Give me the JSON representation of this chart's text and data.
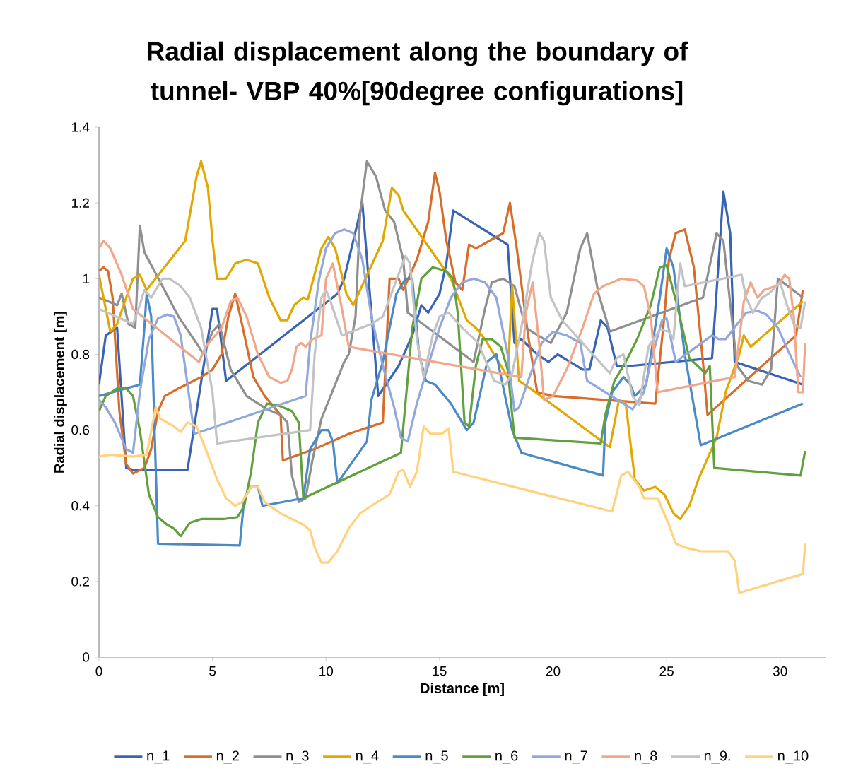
{
  "chart_data": {
    "type": "line",
    "title": "Radial displacement along the boundary of tunnel- VBP 40%[90degree configurations]",
    "xlabel": "Distance [m]",
    "ylabel": "Radial displacement [m]",
    "xlim": [
      0,
      32
    ],
    "xticks": [
      0,
      5,
      10,
      15,
      20,
      25,
      30
    ],
    "ylim": [
      0,
      1.4
    ],
    "yticks": [
      0,
      0.2,
      0.4,
      0.6,
      0.8,
      1,
      1.2,
      1.4
    ],
    "grid": false,
    "legend": "bottom",
    "marker": "none",
    "line_style": "solid",
    "series": [
      {
        "name": "n_1",
        "color": "#3764b4",
        "x": [
          0,
          0.3,
          0.8,
          1.2,
          1.5,
          3.9,
          5.0,
          5.2,
          5.6,
          10.5,
          10.8,
          11.6,
          12.3,
          13.2,
          13.8,
          14.2,
          14.5,
          15.0,
          15.3,
          15.6,
          18.0,
          18.3,
          18.6,
          19.3,
          19.8,
          20.2,
          21.3,
          21.6,
          22.1,
          22.4,
          22.8,
          23.5,
          27.0,
          27.5,
          27.8,
          28.0,
          31.0
        ],
        "values": [
          0.72,
          0.85,
          0.87,
          0.5,
          0.495,
          0.495,
          0.92,
          0.92,
          0.73,
          0.96,
          1.0,
          1.2,
          0.69,
          0.77,
          0.85,
          0.93,
          0.91,
          0.96,
          1.04,
          1.18,
          1.09,
          0.83,
          0.84,
          0.8,
          0.78,
          0.8,
          0.76,
          0.76,
          0.89,
          0.87,
          0.77,
          0.77,
          0.79,
          1.23,
          1.12,
          0.78,
          0.72
        ]
      },
      {
        "name": "n_2",
        "color": "#d86c2a",
        "x": [
          0,
          0.2,
          0.4,
          0.6,
          0.9,
          1.2,
          1.5,
          2.0,
          2.3,
          2.6,
          2.9,
          3.5,
          4.5,
          5.0,
          5.4,
          5.7,
          6.0,
          6.3,
          6.8,
          7.3,
          8.0,
          8.1,
          9.5,
          11.0,
          12.5,
          12.8,
          13.2,
          13.4,
          14.0,
          14.5,
          14.8,
          15.0,
          15.3,
          15.7,
          16.0,
          16.3,
          16.6,
          17.8,
          18.1,
          18.4,
          18.9,
          19.3,
          20.0,
          24.5,
          24.9,
          25.1,
          25.4,
          25.8,
          26.2,
          26.6,
          26.8,
          30.7,
          31.0
        ],
        "values": [
          1.02,
          1.03,
          1.02,
          0.95,
          0.65,
          0.51,
          0.485,
          0.5,
          0.55,
          0.65,
          0.69,
          0.71,
          0.74,
          0.76,
          0.8,
          0.9,
          0.96,
          0.88,
          0.74,
          0.69,
          0.64,
          0.52,
          0.55,
          0.59,
          0.62,
          1.0,
          1.0,
          0.97,
          1.05,
          1.15,
          1.28,
          1.23,
          1.1,
          0.99,
          0.97,
          1.09,
          1.08,
          1.12,
          1.2,
          1.08,
          0.85,
          0.7,
          0.69,
          0.67,
          0.9,
          1.05,
          1.12,
          1.13,
          1.03,
          0.78,
          0.64,
          0.85,
          0.97
        ]
      },
      {
        "name": "n_3",
        "color": "#8f8f8f",
        "x": [
          0,
          0.8,
          1.0,
          1.3,
          1.6,
          1.8,
          2.0,
          3.5,
          4.4,
          4.6,
          5.0,
          5.3,
          5.8,
          6.5,
          7.4,
          8.0,
          8.3,
          8.5,
          8.8,
          9.1,
          9.4,
          9.8,
          10.4,
          10.8,
          11.0,
          11.3,
          11.5,
          11.8,
          12.2,
          12.6,
          13.0,
          13.4,
          13.6,
          16.5,
          17.0,
          17.3,
          17.8,
          18.3,
          18.8,
          19.2,
          19.9,
          20.6,
          21.2,
          21.5,
          22.0,
          22.5,
          26.6,
          27.2,
          27.5,
          28.1,
          28.6,
          29.2,
          29.6,
          29.9,
          31.0
        ],
        "values": [
          0.95,
          0.93,
          0.96,
          0.88,
          0.87,
          1.14,
          1.07,
          0.9,
          0.82,
          0.8,
          0.86,
          0.88,
          0.76,
          0.69,
          0.655,
          0.64,
          0.62,
          0.48,
          0.41,
          0.42,
          0.52,
          0.63,
          0.72,
          0.78,
          0.8,
          0.9,
          1.17,
          1.31,
          1.27,
          1.18,
          1.15,
          1.05,
          0.91,
          0.78,
          0.92,
          0.99,
          1.0,
          0.98,
          0.87,
          0.855,
          0.83,
          0.91,
          1.08,
          1.12,
          0.96,
          0.86,
          0.95,
          1.12,
          1.1,
          0.77,
          0.73,
          0.72,
          0.76,
          1.0,
          0.95
        ]
      },
      {
        "name": "n_4",
        "color": "#e2a800",
        "x": [
          0,
          0.2,
          0.5,
          0.8,
          1.2,
          1.5,
          1.8,
          2.1,
          3.8,
          4.3,
          4.5,
          4.8,
          5.0,
          5.2,
          5.6,
          6.0,
          6.5,
          7.0,
          7.5,
          8.0,
          8.3,
          8.6,
          9.0,
          9.2,
          9.8,
          10.1,
          10.4,
          10.9,
          11.2,
          12.5,
          12.9,
          13.2,
          13.4,
          15.5,
          16.2,
          16.6,
          17.0,
          17.5,
          18.0,
          18.2,
          18.5,
          19.0,
          22.5,
          22.9,
          23.2,
          23.6,
          24.0,
          24.5,
          24.9,
          25.3,
          25.6,
          26.0,
          26.4,
          27.2,
          27.6,
          28.2,
          28.4,
          28.7,
          31.0
        ],
        "values": [
          1.01,
          0.95,
          0.86,
          0.88,
          0.95,
          1.0,
          1.01,
          0.97,
          1.1,
          1.27,
          1.31,
          1.24,
          1.1,
          1.0,
          1.0,
          1.04,
          1.05,
          1.04,
          0.95,
          0.89,
          0.89,
          0.93,
          0.95,
          0.945,
          1.08,
          1.11,
          1.08,
          0.96,
          0.93,
          1.1,
          1.24,
          1.22,
          1.18,
          1.0,
          0.89,
          0.87,
          0.84,
          0.79,
          0.74,
          0.98,
          0.73,
          0.71,
          0.555,
          0.68,
          0.67,
          0.47,
          0.44,
          0.45,
          0.43,
          0.38,
          0.365,
          0.4,
          0.47,
          0.58,
          0.7,
          0.8,
          0.85,
          0.82,
          0.94
        ]
      },
      {
        "name": "n_5",
        "color": "#4a8ac6",
        "x": [
          0,
          1.8,
          2.0,
          2.1,
          2.3,
          2.5,
          2.6,
          6.2,
          6.4,
          6.7,
          7.0,
          7.2,
          9.0,
          9.3,
          9.8,
          10.1,
          10.3,
          10.5,
          11.8,
          12.0,
          12.5,
          13.1,
          13.5,
          13.8,
          14.1,
          14.4,
          14.8,
          15.5,
          16.0,
          16.2,
          16.5,
          16.8,
          17.1,
          17.5,
          18.2,
          18.6,
          22.2,
          22.3,
          22.6,
          23.1,
          23.4,
          23.6,
          24.1,
          24.7,
          25.0,
          25.3,
          25.8,
          26.5,
          31.0
        ],
        "values": [
          0.69,
          0.72,
          0.87,
          0.96,
          0.9,
          0.5,
          0.3,
          0.295,
          0.42,
          0.45,
          0.45,
          0.4,
          0.42,
          0.55,
          0.6,
          0.6,
          0.57,
          0.46,
          0.57,
          0.68,
          0.78,
          0.96,
          1.0,
          1.0,
          0.8,
          0.73,
          0.72,
          0.67,
          0.62,
          0.6,
          0.62,
          0.7,
          0.78,
          0.8,
          0.6,
          0.54,
          0.48,
          0.62,
          0.7,
          0.74,
          0.72,
          0.69,
          0.72,
          0.95,
          1.08,
          1.03,
          0.8,
          0.56,
          0.67
        ]
      },
      {
        "name": "n_6",
        "color": "#61a03c",
        "x": [
          0,
          0.3,
          0.8,
          1.2,
          1.5,
          1.8,
          2.2,
          2.6,
          3.0,
          3.3,
          3.6,
          4.0,
          4.5,
          5.5,
          6.1,
          6.4,
          6.7,
          7.0,
          7.4,
          7.9,
          8.5,
          8.8,
          9.0,
          13.3,
          13.8,
          14.2,
          14.7,
          15.3,
          15.6,
          15.8,
          16.1,
          16.3,
          16.6,
          16.9,
          17.3,
          17.7,
          18.0,
          18.3,
          22.1,
          22.3,
          22.7,
          23.2,
          23.7,
          24.3,
          24.7,
          25.0,
          25.5,
          26.0,
          26.7,
          26.9,
          27.1,
          30.9,
          31.1
        ],
        "values": [
          0.65,
          0.69,
          0.71,
          0.71,
          0.69,
          0.6,
          0.43,
          0.37,
          0.35,
          0.34,
          0.32,
          0.355,
          0.365,
          0.365,
          0.37,
          0.4,
          0.49,
          0.62,
          0.67,
          0.665,
          0.65,
          0.62,
          0.42,
          0.54,
          0.87,
          1.0,
          1.03,
          1.02,
          1.0,
          0.91,
          0.62,
          0.61,
          0.77,
          0.84,
          0.84,
          0.82,
          0.76,
          0.58,
          0.565,
          0.64,
          0.73,
          0.78,
          0.84,
          0.93,
          1.03,
          1.035,
          0.92,
          0.79,
          0.75,
          0.77,
          0.5,
          0.48,
          0.545
        ]
      },
      {
        "name": "n_7",
        "color": "#92a7dc",
        "x": [
          0,
          0.3,
          0.7,
          1.2,
          1.5,
          1.8,
          2.2,
          2.6,
          3.0,
          3.3,
          3.6,
          4.2,
          9.1,
          9.3,
          9.7,
          10.0,
          10.4,
          10.8,
          11.2,
          11.6,
          12.0,
          12.5,
          13.0,
          13.3,
          13.6,
          14.0,
          14.5,
          15.0,
          15.5,
          16.0,
          16.5,
          17.0,
          17.5,
          18.0,
          18.3,
          18.5,
          18.9,
          19.5,
          20.0,
          20.6,
          21.2,
          21.5,
          23.5,
          24.0,
          24.3,
          24.8,
          25.0,
          25.4,
          27.0,
          27.3,
          27.6,
          28.5,
          29.0,
          29.4,
          29.9,
          30.5,
          30.9
        ],
        "values": [
          0.68,
          0.66,
          0.62,
          0.55,
          0.54,
          0.7,
          0.84,
          0.895,
          0.905,
          0.9,
          0.85,
          0.59,
          0.69,
          0.83,
          1.0,
          1.08,
          1.12,
          1.13,
          1.12,
          1.05,
          0.9,
          0.77,
          0.66,
          0.58,
          0.57,
          0.67,
          0.77,
          0.87,
          0.95,
          0.99,
          1.0,
          0.99,
          0.95,
          0.8,
          0.65,
          0.66,
          0.73,
          0.83,
          0.86,
          0.85,
          0.83,
          0.73,
          0.655,
          0.7,
          0.78,
          0.89,
          0.895,
          0.78,
          0.85,
          0.84,
          0.84,
          0.91,
          0.915,
          0.905,
          0.87,
          0.79,
          0.74
        ]
      },
      {
        "name": "n_8",
        "color": "#f2a68a",
        "x": [
          0,
          0.2,
          0.5,
          1.0,
          1.5,
          4.4,
          4.7,
          5.4,
          5.8,
          6.1,
          6.5,
          7.0,
          7.5,
          8.0,
          8.3,
          8.5,
          8.7,
          8.9,
          9.1,
          9.4,
          9.8,
          10.0,
          10.3,
          10.7,
          11.0,
          18.6,
          18.8,
          19.1,
          19.4,
          19.6,
          20.0,
          20.6,
          21.3,
          21.8,
          22.2,
          22.6,
          23.0,
          23.7,
          24.0,
          24.3,
          24.6,
          28.0,
          28.4,
          28.7,
          29.0,
          29.3,
          29.8,
          30.0,
          30.2,
          30.4,
          30.6,
          30.8,
          31.0,
          31.1
        ],
        "values": [
          1.08,
          1.1,
          1.08,
          1.01,
          0.92,
          0.78,
          0.82,
          0.87,
          0.94,
          0.95,
          0.9,
          0.8,
          0.74,
          0.725,
          0.73,
          0.76,
          0.82,
          0.83,
          0.82,
          0.84,
          0.85,
          1.0,
          1.04,
          0.92,
          0.82,
          0.74,
          0.91,
          0.99,
          0.82,
          0.68,
          0.69,
          0.76,
          0.87,
          0.96,
          0.98,
          0.99,
          1.0,
          0.995,
          0.98,
          0.9,
          0.7,
          0.74,
          0.94,
          0.99,
          0.95,
          0.97,
          0.98,
          0.99,
          1.01,
          1.0,
          0.9,
          0.7,
          0.7,
          0.83
        ]
      },
      {
        "name": "n_9.",
        "color": "#c3c3c3",
        "x": [
          0,
          1.5,
          1.8,
          2.0,
          2.3,
          2.8,
          3.1,
          3.6,
          4.0,
          4.5,
          5.0,
          5.2,
          9.3,
          9.5,
          9.8,
          10.0,
          10.2,
          10.7,
          12.0,
          12.5,
          13.0,
          13.5,
          13.7,
          14.0,
          14.3,
          14.7,
          15.0,
          15.4,
          16.0,
          16.7,
          17.4,
          17.9,
          18.2,
          18.6,
          19.1,
          19.4,
          19.6,
          19.9,
          20.4,
          22.5,
          22.8,
          23.1,
          23.5,
          23.8,
          24.2,
          24.7,
          25.1,
          25.3,
          25.5,
          25.6,
          25.8,
          28.3,
          28.5,
          28.8,
          29.2,
          29.5,
          30.0,
          30.3,
          30.6,
          30.9,
          31.1
        ],
        "values": [
          0.92,
          0.88,
          0.93,
          0.97,
          0.95,
          1.0,
          1.0,
          0.98,
          0.95,
          0.87,
          0.7,
          0.565,
          0.6,
          0.8,
          0.95,
          0.97,
          0.94,
          0.85,
          0.88,
          0.9,
          0.98,
          1.06,
          1.04,
          0.84,
          0.74,
          0.85,
          0.9,
          0.91,
          0.87,
          0.83,
          0.73,
          0.72,
          0.75,
          0.87,
          1.05,
          1.12,
          1.1,
          0.95,
          0.89,
          0.75,
          0.79,
          0.8,
          0.69,
          0.665,
          0.82,
          0.865,
          0.86,
          0.84,
          0.98,
          1.04,
          0.98,
          1.01,
          0.95,
          0.91,
          0.95,
          0.96,
          0.99,
          0.93,
          0.88,
          0.87,
          0.94
        ]
      },
      {
        "name": "n_10",
        "color": "#ffd27f",
        "x": [
          0,
          0.5,
          1.5,
          2.1,
          2.5,
          2.7,
          3.3,
          3.6,
          3.9,
          4.3,
          4.7,
          5.2,
          5.6,
          6.0,
          6.3,
          6.7,
          7.0,
          7.3,
          8.0,
          9.0,
          9.3,
          9.5,
          9.8,
          10.1,
          10.5,
          11.0,
          11.5,
          12.0,
          12.8,
          13.0,
          13.2,
          13.4,
          13.7,
          14.0,
          14.3,
          14.6,
          15.1,
          15.4,
          15.6,
          22.6,
          23.0,
          23.3,
          23.8,
          24.0,
          24.6,
          25.1,
          25.4,
          25.8,
          26.5,
          27.7,
          28.0,
          28.2,
          31.0,
          31.1
        ],
        "values": [
          0.53,
          0.535,
          0.53,
          0.535,
          0.66,
          0.63,
          0.61,
          0.595,
          0.62,
          0.61,
          0.55,
          0.47,
          0.42,
          0.4,
          0.41,
          0.45,
          0.45,
          0.41,
          0.38,
          0.35,
          0.335,
          0.29,
          0.25,
          0.25,
          0.28,
          0.34,
          0.38,
          0.4,
          0.43,
          0.46,
          0.49,
          0.495,
          0.45,
          0.49,
          0.61,
          0.59,
          0.59,
          0.605,
          0.49,
          0.385,
          0.48,
          0.49,
          0.45,
          0.42,
          0.42,
          0.35,
          0.3,
          0.29,
          0.28,
          0.28,
          0.255,
          0.17,
          0.22,
          0.3
        ]
      }
    ]
  }
}
